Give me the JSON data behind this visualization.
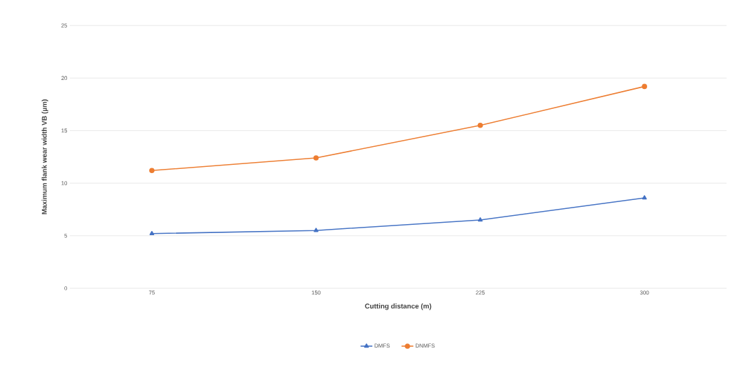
{
  "chart_data": {
    "type": "line",
    "xlabel": "Cutting distance (m)",
    "ylabel": "Maximum flank wear width VB (µm)",
    "categories": [
      "75",
      "150",
      "225",
      "300"
    ],
    "series": [
      {
        "name": "DMFS",
        "color": "#4472c4",
        "marker": "triangle",
        "values": [
          5.2,
          5.5,
          6.5,
          8.6
        ]
      },
      {
        "name": "DNMFS",
        "color": "#ed7d31",
        "marker": "circle",
        "values": [
          11.2,
          12.4,
          15.5,
          19.2
        ]
      }
    ],
    "ylim": [
      0,
      25
    ],
    "yticks": [
      0,
      5,
      10,
      15,
      20,
      25
    ],
    "grid": "y",
    "legend": "bottom",
    "line_style": "solid"
  }
}
